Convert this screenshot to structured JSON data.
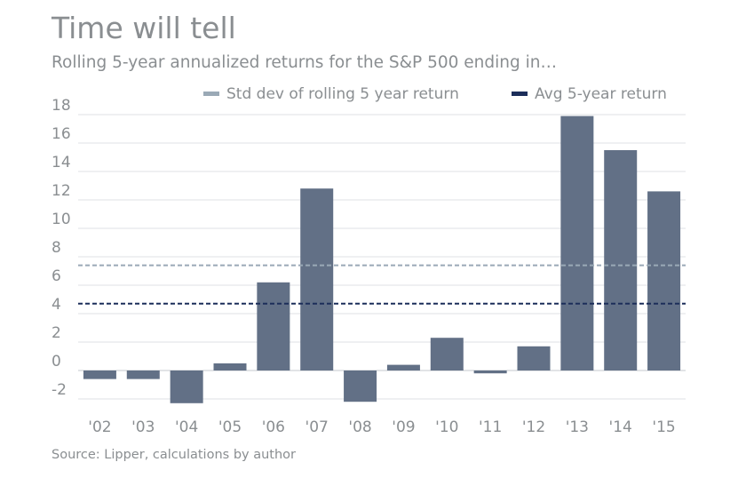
{
  "chart_data": {
    "type": "bar",
    "title": "Time will tell",
    "subtitle": "Rolling 5-year annualized returns for the S&P 500 ending in…",
    "source": "Source: Lipper, calculations by author",
    "xlabel": "",
    "ylabel": "",
    "ylim": [
      -2.5,
      18
    ],
    "yticks": [
      -2,
      0,
      2,
      4,
      6,
      8,
      10,
      12,
      14,
      16,
      18
    ],
    "categories": [
      "'02",
      "'03",
      "'04",
      "'05",
      "'06",
      "'07",
      "'08",
      "'09",
      "'10",
      "'11",
      "'12",
      "'13",
      "'14",
      "'15"
    ],
    "values": [
      -0.6,
      -0.6,
      -2.3,
      0.5,
      6.2,
      12.8,
      -2.2,
      0.4,
      2.3,
      -0.2,
      1.7,
      17.9,
      15.5,
      12.6
    ],
    "reference_lines": [
      {
        "name": "Std dev of rolling 5 year return",
        "value": 7.4,
        "color": "#9aa9b6",
        "style": "dashed"
      },
      {
        "name": "Avg 5-year return",
        "value": 4.7,
        "color": "#1c2e5a",
        "style": "dashed"
      }
    ],
    "bar_color": "#627086",
    "grid": true,
    "legend_position": "top-right"
  }
}
